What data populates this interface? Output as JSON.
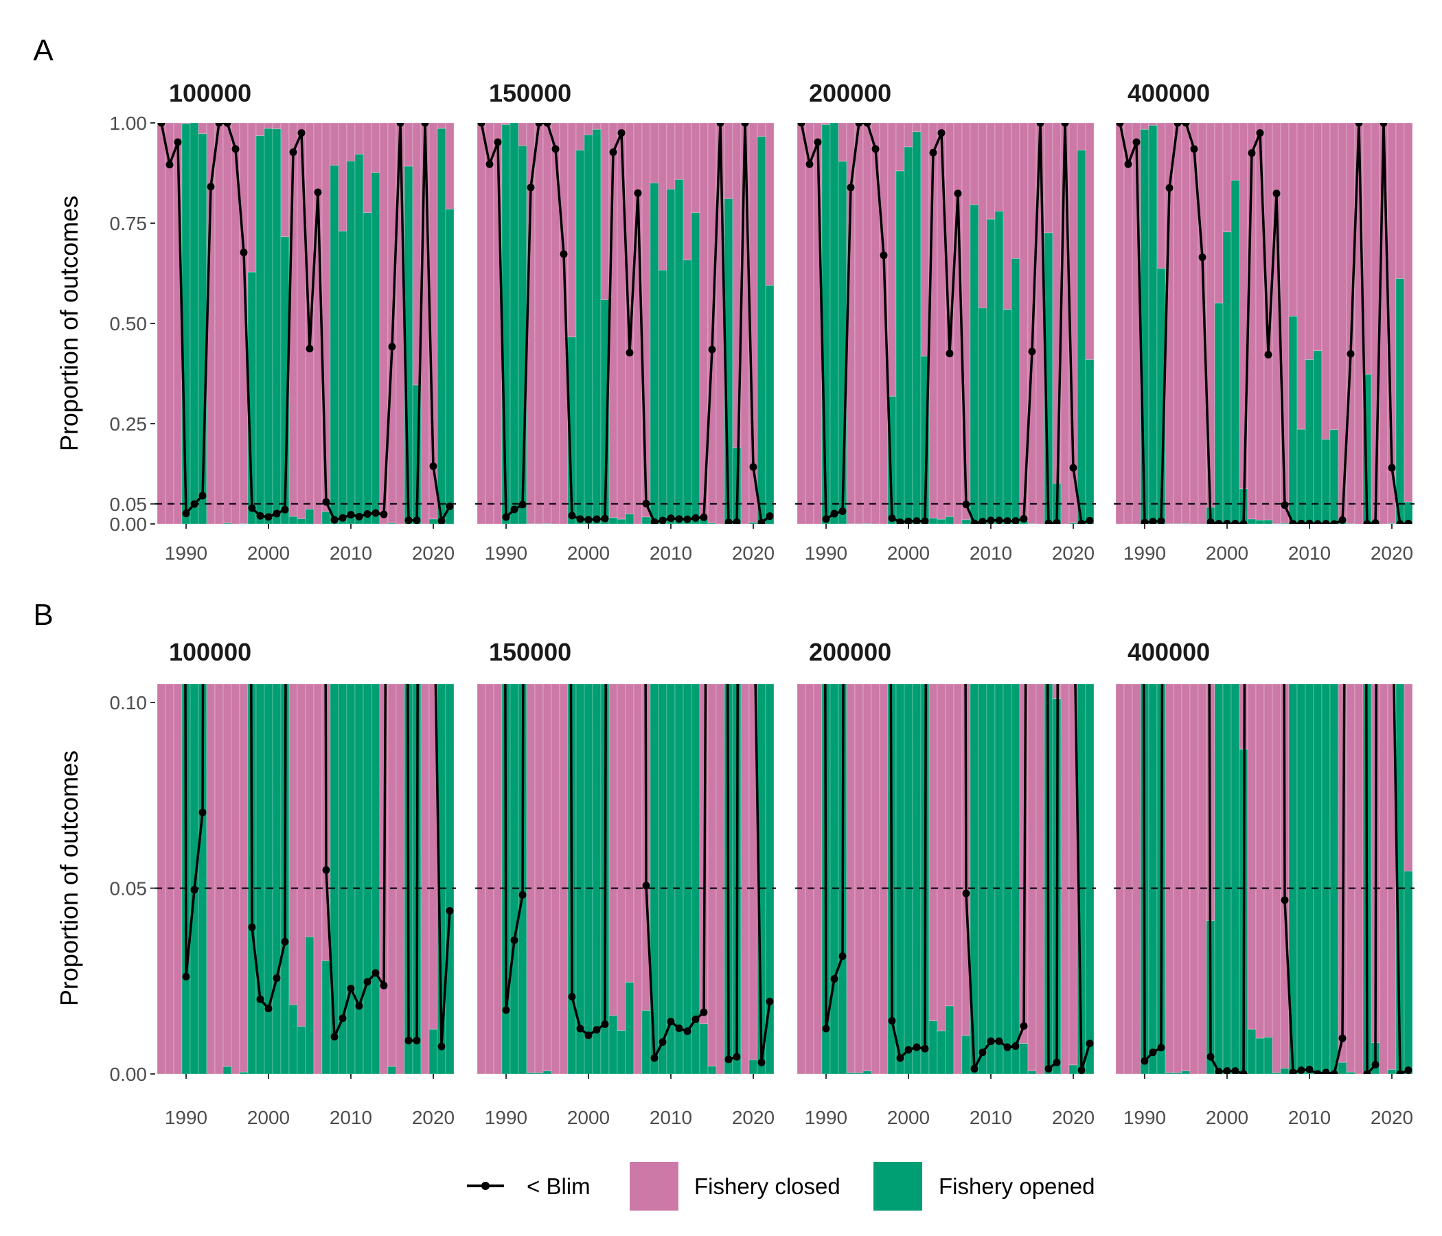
{
  "chart_data": {
    "type": "bar",
    "x": [
      1987,
      1988,
      1989,
      1990,
      1991,
      1992,
      1993,
      1994,
      1995,
      1996,
      1997,
      1998,
      1999,
      2000,
      2001,
      2002,
      2003,
      2004,
      2005,
      2006,
      2007,
      2008,
      2009,
      2010,
      2011,
      2012,
      2013,
      2014,
      2015,
      2016,
      2017,
      2018,
      2019,
      2020,
      2021,
      2022
    ],
    "xticks": [
      "1990",
      "2000",
      "2010",
      "2020"
    ],
    "threshold_line": 0.05,
    "colors": {
      "closed": "#CC79A7",
      "opened": "#009E73",
      "blim": "#000000"
    },
    "legend": {
      "position": "bottom",
      "blim_label": "< Blim",
      "closed_label": "Fishery closed",
      "opened_label": "Fishery opened"
    },
    "facets": [
      {
        "title": "100000",
        "opened": [
          0,
          0,
          0,
          0.998,
          1.0,
          0.973,
          0,
          0,
          0.002,
          0,
          0.0005,
          0.628,
          0.968,
          0.986,
          0.985,
          0.716,
          0.0186,
          0.0128,
          0.0369,
          0,
          0.0305,
          0.894,
          0.73,
          0.905,
          0.922,
          0.776,
          0.876,
          0,
          0.002,
          0,
          0.892,
          0.346,
          0,
          0.012,
          0.986,
          0.785
        ],
        "blim": [
          1.0,
          0.896,
          0.952,
          0.0262,
          0.0496,
          0.0704,
          0.841,
          1.0,
          1.0,
          0.935,
          0.677,
          0.0395,
          0.0201,
          0.0176,
          0.0258,
          0.0356,
          0.927,
          0.975,
          0.437,
          0.827,
          0.0549,
          0.01,
          0.015,
          0.023,
          0.0183,
          0.0248,
          0.0272,
          0.0238,
          0.442,
          1.0,
          0.009,
          0.009,
          1.0,
          0.144,
          0.0074,
          0.0439
        ]
      },
      {
        "title": "150000",
        "opened": [
          0,
          0,
          0,
          0.996,
          1.0,
          0.943,
          0.0003,
          0.0003,
          0.0008,
          0,
          0,
          0.466,
          0.932,
          0.97,
          0.984,
          0.559,
          0.0157,
          0.0117,
          0.0247,
          0,
          0.0171,
          0.85,
          0.633,
          0.835,
          0.859,
          0.658,
          0.776,
          0.0135,
          0.0021,
          0,
          0.811,
          0.19,
          0,
          0.0038,
          0.966,
          0.595
        ],
        "blim": [
          1.0,
          0.897,
          0.952,
          0.0172,
          0.036,
          0.0482,
          0.839,
          1.0,
          1.0,
          0.935,
          0.673,
          0.0208,
          0.0122,
          0.0104,
          0.0119,
          0.0134,
          0.927,
          0.975,
          0.427,
          0.825,
          0.0507,
          0.0043,
          0.0086,
          0.0141,
          0.0123,
          0.0115,
          0.0147,
          0.0166,
          0.435,
          1.0,
          0.0039,
          0.0046,
          1.0,
          0.142,
          0.0031,
          0.0195
        ]
      },
      {
        "title": "200000",
        "opened": [
          0,
          0,
          0,
          0.996,
          1.0,
          0.904,
          0.0003,
          0.0003,
          0.0008,
          0,
          0,
          0.318,
          0.88,
          0.94,
          0.978,
          0.418,
          0.0143,
          0.0116,
          0.0183,
          0,
          0.0103,
          0.796,
          0.539,
          0.76,
          0.78,
          0.535,
          0.662,
          0.0082,
          0.0008,
          0,
          0.726,
          0.101,
          0,
          0.0024,
          0.932,
          0.41
        ],
        "blim": [
          1.0,
          0.897,
          0.952,
          0.0122,
          0.0256,
          0.0317,
          0.839,
          1.0,
          1.0,
          0.935,
          0.67,
          0.0143,
          0.0043,
          0.0065,
          0.0072,
          0.0068,
          0.926,
          0.975,
          0.425,
          0.824,
          0.0486,
          0.0014,
          0.0058,
          0.0088,
          0.0088,
          0.0072,
          0.0075,
          0.0129,
          0.43,
          1.0,
          0.0014,
          0.0031,
          1.0,
          0.14,
          0.001,
          0.0082
        ]
      },
      {
        "title": "400000",
        "opened": [
          0,
          0,
          0,
          0.984,
          0.994,
          0.637,
          0.0003,
          0.0003,
          0.0008,
          0,
          0,
          0.0413,
          0.551,
          0.728,
          0.857,
          0.0874,
          0.012,
          0.0096,
          0.0099,
          0.0003,
          0.0015,
          0.518,
          0.236,
          0.41,
          0.432,
          0.211,
          0.235,
          0.0031,
          0.0005,
          0,
          0.373,
          0.0084,
          0,
          0.0012,
          0.612,
          0.0546
        ],
        "blim": [
          1.0,
          0.897,
          0.952,
          0.0035,
          0.0058,
          0.0071,
          0.838,
          1.0,
          1.0,
          0.935,
          0.665,
          0.0046,
          0.0006,
          0.0008,
          0.0008,
          0.0,
          0.925,
          0.975,
          0.422,
          0.824,
          0.0468,
          0.0004,
          0.001,
          0.0012,
          0.0,
          0.0004,
          0.0,
          0.0096,
          0.424,
          1.0,
          0.0,
          0.0025,
          1.0,
          0.14,
          0.0,
          0.001
        ]
      }
    ],
    "panels": [
      {
        "label": "A",
        "ylabel": "Proportion of outcomes",
        "ylim": [
          0,
          1.0
        ],
        "yticks": [
          "0.00",
          "0.05",
          "0.25",
          "0.50",
          "0.75",
          "1.00"
        ]
      },
      {
        "label": "B",
        "ylabel": "Proportion of outcomes",
        "ylim": [
          0,
          0.105
        ],
        "yticks": [
          "0.00",
          "0.05",
          "0.10"
        ]
      }
    ]
  }
}
